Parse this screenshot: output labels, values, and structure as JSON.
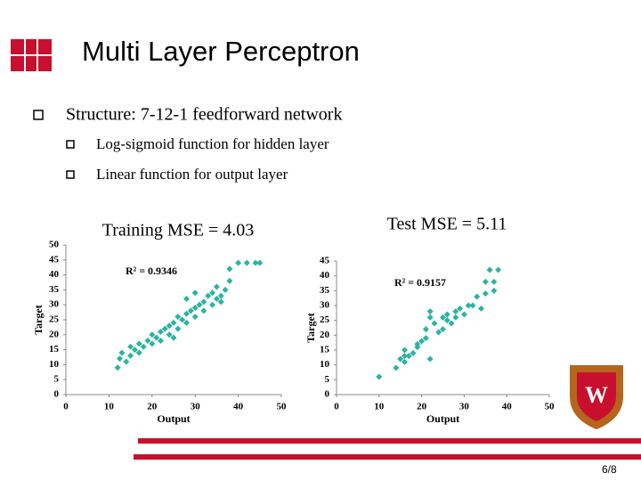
{
  "title": "Multi Layer Perceptron",
  "bullet": "Structure: 7-12-1 feedforward network",
  "sub_bullets": [
    "Log-sigmoid function for hidden layer",
    "Linear function for output layer"
  ],
  "page_number": "6/8",
  "chart_data": [
    {
      "type": "scatter",
      "title": "Training MSE = 4.03",
      "annotation": "R² = 0.9346",
      "x_label": "Output",
      "y_label": "Target",
      "color": "#2bb3a3",
      "xlim": [
        0,
        50
      ],
      "xticks": [
        0,
        10,
        20,
        30,
        40,
        50
      ],
      "ylim": [
        0,
        50
      ],
      "yticks": [
        0,
        5,
        10,
        15,
        20,
        25,
        30,
        35,
        40,
        45,
        50
      ],
      "x": [
        12,
        12.5,
        13,
        14,
        15,
        15,
        16,
        17,
        17,
        18,
        19,
        20,
        20,
        21,
        22,
        22,
        23,
        24,
        24,
        25,
        26,
        26,
        27,
        28,
        28,
        29,
        30,
        30,
        31,
        32,
        32,
        33,
        34,
        34,
        35,
        35,
        36,
        37,
        38,
        38,
        40,
        42,
        44,
        45,
        28,
        30,
        36,
        25
      ],
      "values": [
        9,
        12,
        14,
        11,
        13,
        16,
        15,
        14,
        17,
        16,
        18,
        17,
        20,
        19,
        21,
        18,
        22,
        20,
        23,
        24,
        22,
        26,
        25,
        27,
        24,
        28,
        26,
        29,
        30,
        28,
        31,
        33,
        30,
        34,
        32,
        36,
        33,
        35,
        38,
        42,
        44,
        44,
        44,
        44,
        32,
        34,
        31,
        19
      ]
    },
    {
      "type": "scatter",
      "title": "Test MSE = 5.11",
      "annotation": "R² = 0.9157",
      "x_label": "Output",
      "y_label": "Target",
      "color": "#2bb3a3",
      "xlim": [
        0,
        50
      ],
      "xticks": [
        0,
        10,
        20,
        30,
        40,
        50
      ],
      "ylim": [
        0,
        45
      ],
      "yticks": [
        0,
        5,
        10,
        15,
        20,
        25,
        30,
        35,
        40,
        45
      ],
      "x": [
        10,
        14,
        15,
        16,
        16,
        17,
        18,
        19,
        20,
        21,
        21,
        22,
        22,
        22,
        23,
        24,
        25,
        25,
        26,
        27,
        28,
        29,
        30,
        31,
        32,
        33,
        34,
        35,
        35,
        36,
        37,
        37,
        38,
        16,
        19,
        28,
        26
      ],
      "values": [
        6,
        9,
        12,
        11,
        15,
        13,
        14,
        16,
        18,
        19,
        22,
        12,
        26,
        28,
        24,
        21,
        22,
        26,
        27,
        24,
        28,
        29,
        27,
        30,
        30,
        33,
        29,
        34,
        38,
        42,
        35,
        38,
        42,
        13,
        17,
        26,
        25
      ]
    }
  ]
}
